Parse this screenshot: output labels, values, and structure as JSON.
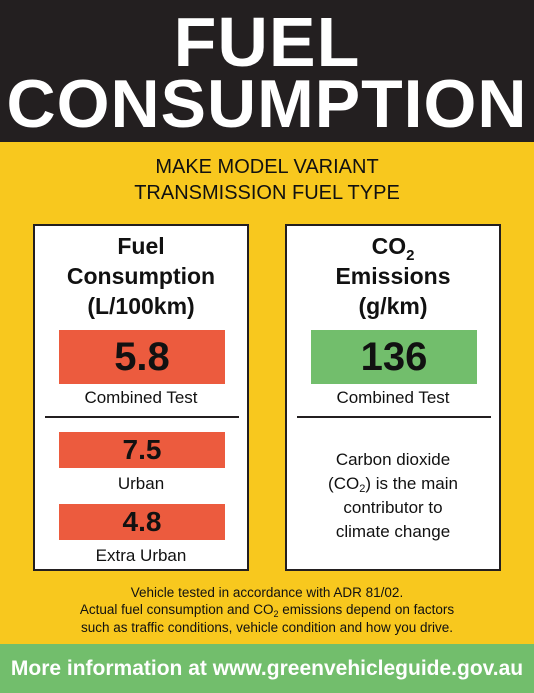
{
  "header": {
    "line1": "FUEL",
    "line2": "CONSUMPTION"
  },
  "vehicle": {
    "line1": "MAKE MODEL VARIANT",
    "line2": "TRANSMISSION FUEL TYPE"
  },
  "fuel_panel": {
    "title_line1": "Fuel",
    "title_line2": "Consumption",
    "title_line3": "(L/100km)",
    "combined_value": "5.8",
    "combined_label": "Combined Test",
    "urban_value": "7.5",
    "urban_label": "Urban",
    "extra_urban_value": "4.8",
    "extra_urban_label": "Extra Urban"
  },
  "co2_panel": {
    "title_co": "CO",
    "title_sub": "2",
    "title_line2": "Emissions",
    "title_line3": "(g/km)",
    "combined_value": "136",
    "combined_label": "Combined Test",
    "note_line1": "Carbon dioxide",
    "note_line2_pre": "(CO",
    "note_line2_sub": "2",
    "note_line2_post": ") is the main",
    "note_line3": "contributor to",
    "note_line4": "climate change"
  },
  "footnote": {
    "line1": "Vehicle tested in accordance with ADR 81/02.",
    "line2_pre": "Actual fuel consumption and CO",
    "line2_sub": "2",
    "line2_post": " emissions depend on factors",
    "line3": "such as traffic conditions, vehicle condition and how you drive."
  },
  "footer": {
    "text": "More information at www.greenvehicleguide.gov.au"
  },
  "colors": {
    "background": "#f8c81e",
    "header": "#231f20",
    "red_band": "#ec5b3e",
    "green_band": "#72be6c"
  }
}
